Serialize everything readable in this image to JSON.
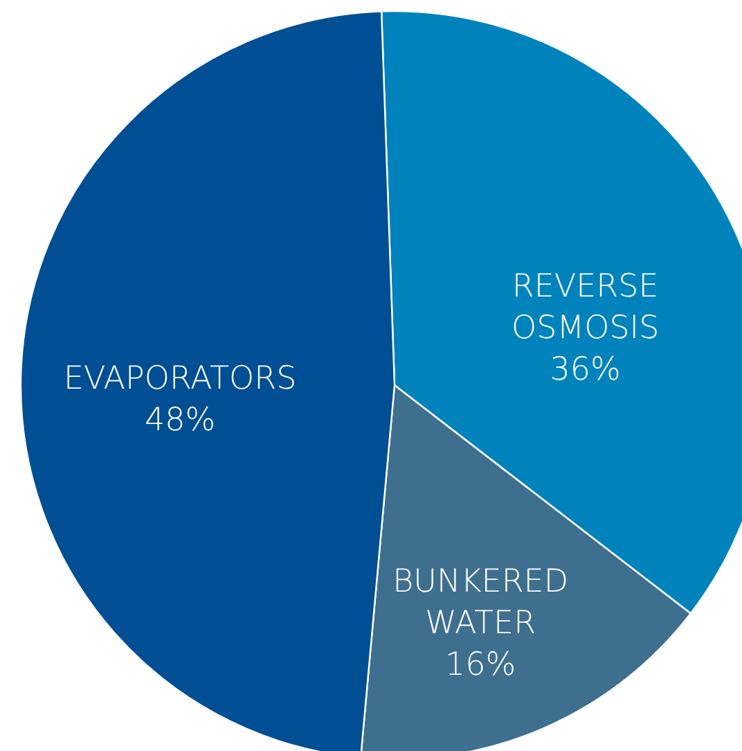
{
  "chart_data": {
    "type": "pie",
    "categories": [
      "REVERSE OSMOSIS",
      "BUNKERED WATER",
      "EVAPORATORS"
    ],
    "values": [
      36,
      16,
      48
    ],
    "value_labels": [
      "36%",
      "16%",
      "48%"
    ],
    "colors": [
      "#0083bd",
      "#3f6f8f",
      "#004f95"
    ]
  }
}
